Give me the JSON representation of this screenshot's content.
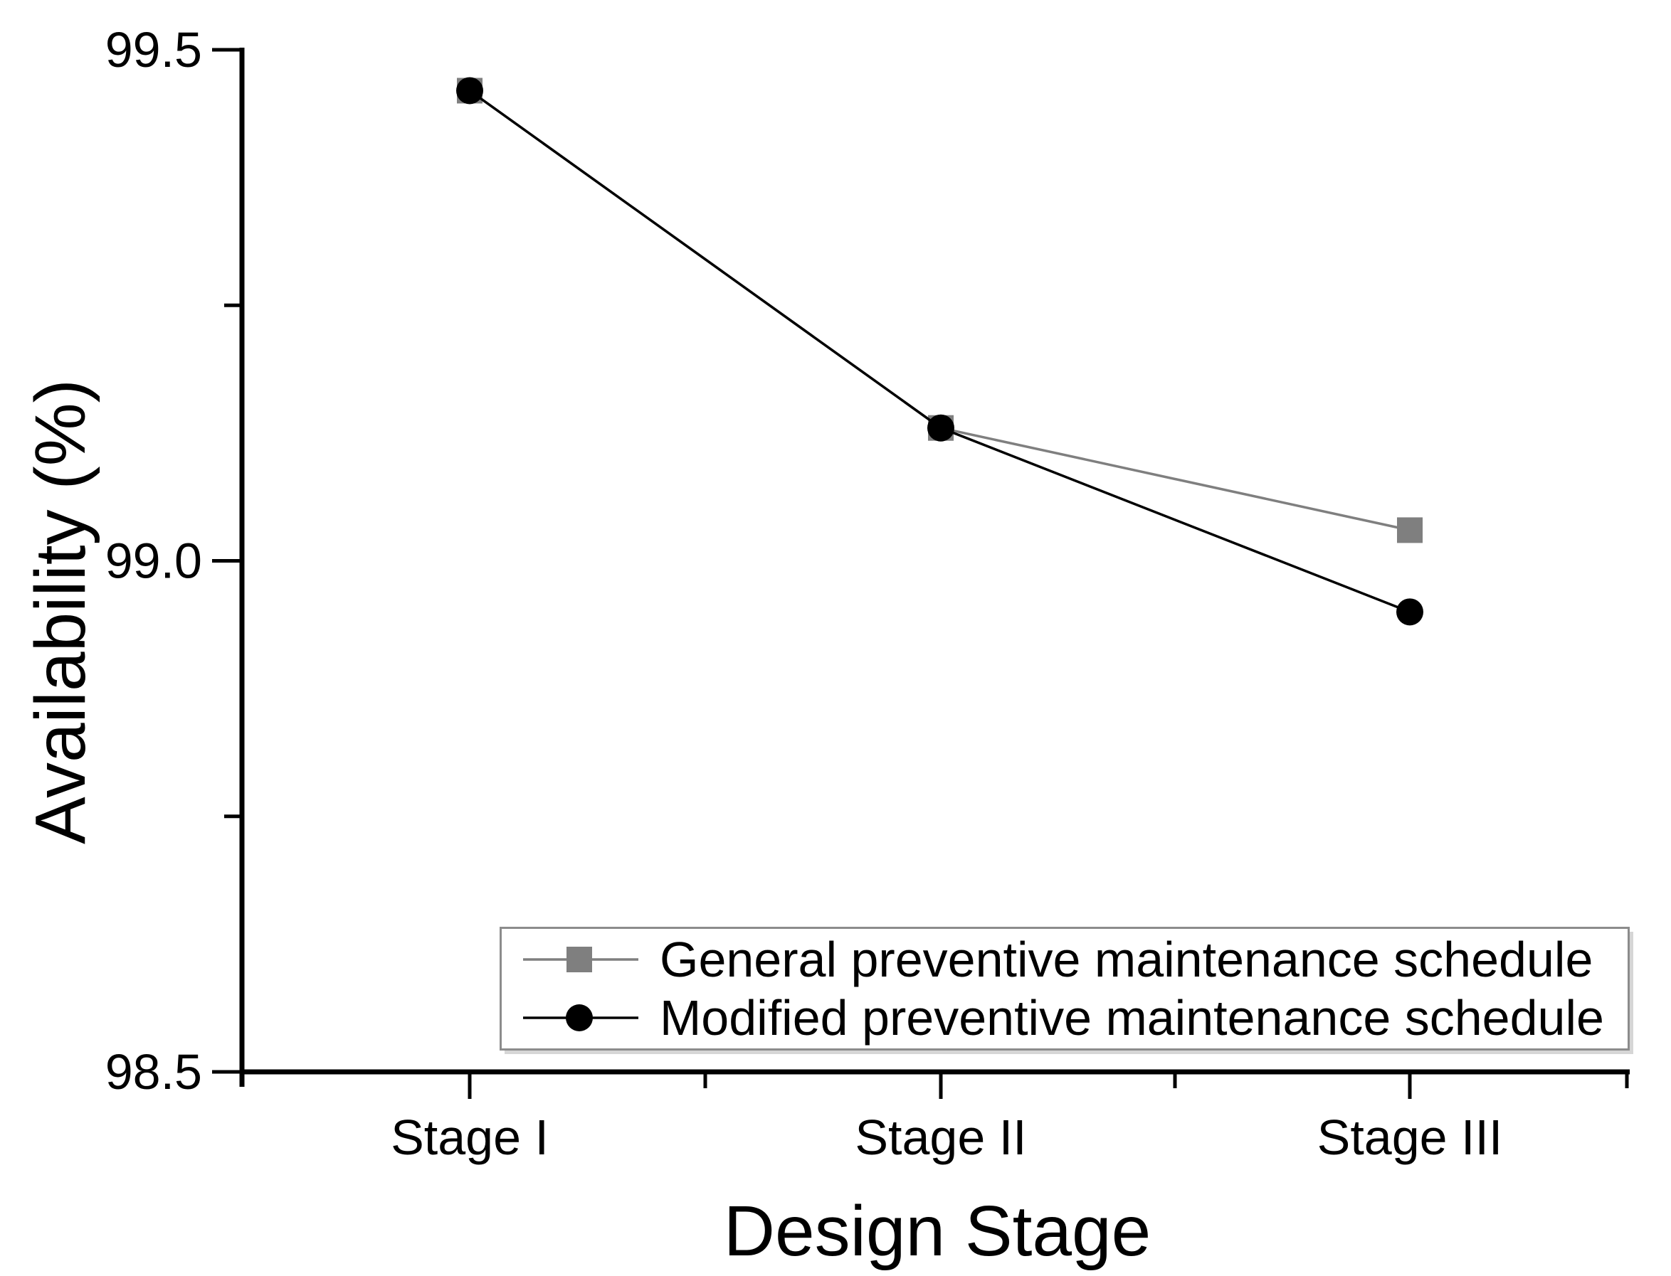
{
  "chart_data": {
    "type": "line",
    "title": "",
    "xlabel": "Design Stage",
    "ylabel": "Availability (%)",
    "categories": [
      "Stage I",
      "Stage II",
      "Stage III"
    ],
    "series": [
      {
        "name": "General preventive maintenance schedule",
        "marker": "square",
        "color": "#7f7f7f",
        "values": [
          99.46,
          99.13,
          99.03
        ]
      },
      {
        "name": "Modified preventive maintenance schedule",
        "marker": "circle",
        "color": "#000000",
        "values": [
          99.46,
          99.13,
          98.95
        ]
      }
    ],
    "y_axis": {
      "min": 98.5,
      "max": 99.5,
      "major_ticks": [
        99.5,
        99.0,
        98.5
      ],
      "tick_labels": [
        "99.5",
        "99.0",
        "98.5"
      ],
      "minor_ticks": [
        99.25,
        98.75
      ]
    },
    "x_axis": {
      "minor_ticks_between_categories": true
    },
    "grid": false,
    "legend_position": "inside-bottom-right",
    "axis_color": "#000000",
    "background": "#ffffff"
  }
}
